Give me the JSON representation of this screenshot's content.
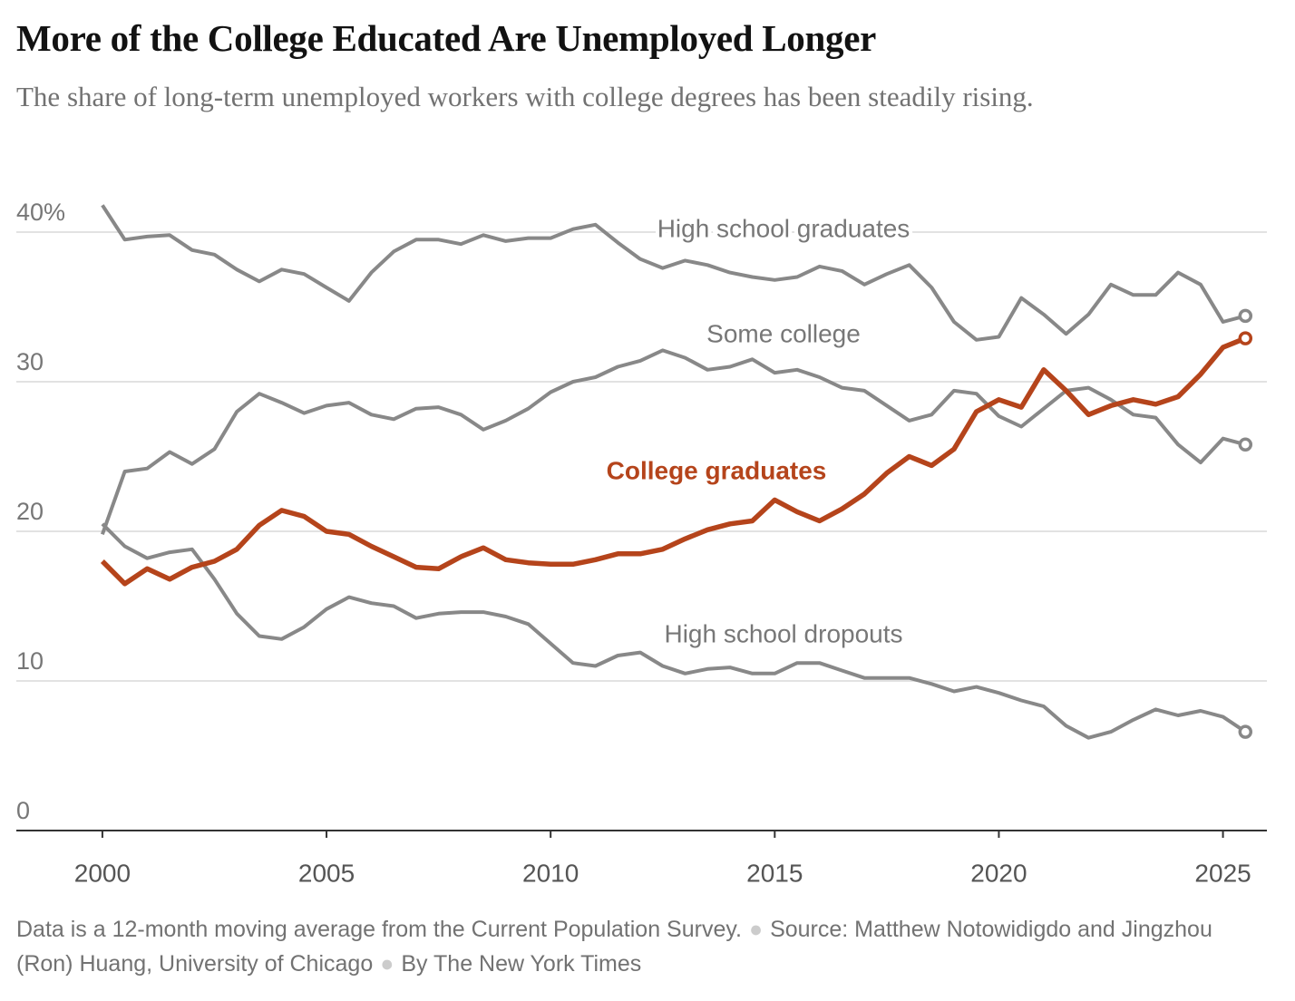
{
  "chart_data": {
    "type": "line",
    "title": "More of the College Educated Are Unemployed Longer",
    "subtitle": "The share of long-term unemployed workers with college degrees has been steadily rising.",
    "note": "Data is a 12-month moving average from the Current Population Survey.",
    "source": "Source: Matthew Notowidigdo and Jingzhou (Ron) Huang, University of Chicago",
    "credit": "By The New York Times",
    "x": [
      2000,
      2000.5,
      2001,
      2001.5,
      2002,
      2002.5,
      2003,
      2003.5,
      2004,
      2004.5,
      2005,
      2005.5,
      2006,
      2006.5,
      2007,
      2007.5,
      2008,
      2008.5,
      2009,
      2009.5,
      2010,
      2010.5,
      2011,
      2011.5,
      2012,
      2012.5,
      2013,
      2013.5,
      2014,
      2014.5,
      2015,
      2015.5,
      2016,
      2016.5,
      2017,
      2017.5,
      2018,
      2018.5,
      2019,
      2019.5,
      2020,
      2020.5,
      2021,
      2021.5,
      2022,
      2022.5,
      2023,
      2023.5,
      2024,
      2024.5,
      2025,
      2025.5
    ],
    "series": [
      {
        "name": "High school graduates",
        "color": "#888888",
        "values": [
          41.8,
          39.5,
          39.7,
          39.8,
          38.8,
          38.5,
          37.5,
          36.7,
          37.5,
          37.2,
          36.3,
          35.4,
          37.3,
          38.7,
          39.5,
          39.5,
          39.2,
          39.8,
          39.4,
          39.6,
          39.6,
          40.2,
          40.5,
          39.3,
          38.2,
          37.6,
          38.1,
          37.8,
          37.3,
          37.0,
          36.8,
          37.0,
          37.7,
          37.4,
          36.5,
          37.2,
          37.8,
          36.3,
          34.0,
          32.8,
          33.0,
          35.6,
          34.5,
          33.2,
          34.5,
          36.5,
          35.8,
          35.8,
          37.3,
          36.5,
          34.0,
          34.4
        ]
      },
      {
        "name": "Some college",
        "color": "#888888",
        "values": [
          19.8,
          24.0,
          24.2,
          25.3,
          24.5,
          25.5,
          28.0,
          29.2,
          28.6,
          27.9,
          28.4,
          28.6,
          27.8,
          27.5,
          28.2,
          28.3,
          27.8,
          26.8,
          27.4,
          28.2,
          29.3,
          30.0,
          30.3,
          31.0,
          31.4,
          32.1,
          31.6,
          30.8,
          31.0,
          31.5,
          30.6,
          30.8,
          30.3,
          29.6,
          29.4,
          28.4,
          27.4,
          27.8,
          29.4,
          29.2,
          27.7,
          27.0,
          28.2,
          29.4,
          29.6,
          28.8,
          27.8,
          27.6,
          25.8,
          24.6,
          26.2,
          25.8
        ]
      },
      {
        "name": "High school dropouts",
        "color": "#888888",
        "values": [
          20.5,
          19.0,
          18.2,
          18.6,
          18.8,
          16.8,
          14.5,
          13.0,
          12.8,
          13.6,
          14.8,
          15.6,
          15.2,
          15.0,
          14.2,
          14.5,
          14.6,
          14.6,
          14.3,
          13.8,
          12.5,
          11.2,
          11.0,
          11.7,
          11.9,
          11.0,
          10.5,
          10.8,
          10.9,
          10.5,
          10.5,
          11.2,
          11.2,
          10.7,
          10.2,
          10.2,
          10.2,
          9.8,
          9.3,
          9.6,
          9.2,
          8.7,
          8.3,
          7.0,
          6.2,
          6.6,
          7.4,
          8.1,
          7.7,
          8.0,
          7.6,
          6.6
        ]
      },
      {
        "name": "College graduates",
        "color": "#b5441b",
        "values": [
          18.0,
          16.5,
          17.5,
          16.8,
          17.6,
          18.0,
          18.8,
          20.4,
          21.4,
          21.0,
          20.0,
          19.8,
          19.0,
          18.3,
          17.6,
          17.5,
          18.3,
          18.9,
          18.1,
          17.9,
          17.8,
          17.8,
          18.1,
          18.5,
          18.5,
          18.8,
          19.5,
          20.1,
          20.5,
          20.7,
          22.1,
          21.3,
          20.7,
          21.5,
          22.5,
          23.9,
          25.0,
          24.4,
          25.5,
          28.0,
          28.8,
          28.3,
          30.8,
          29.4,
          27.8,
          28.4,
          28.8,
          28.5,
          29.0,
          30.5,
          32.3,
          32.9
        ]
      }
    ],
    "xlim": [
      1998.1,
      2026
    ],
    "xticks": [
      2000,
      2005,
      2010,
      2015,
      2020,
      2025
    ],
    "ylim": [
      0,
      40
    ],
    "yticks": [
      0,
      10,
      20,
      30,
      {
        "value": 40,
        "label": "40%"
      }
    ],
    "grid": true
  }
}
